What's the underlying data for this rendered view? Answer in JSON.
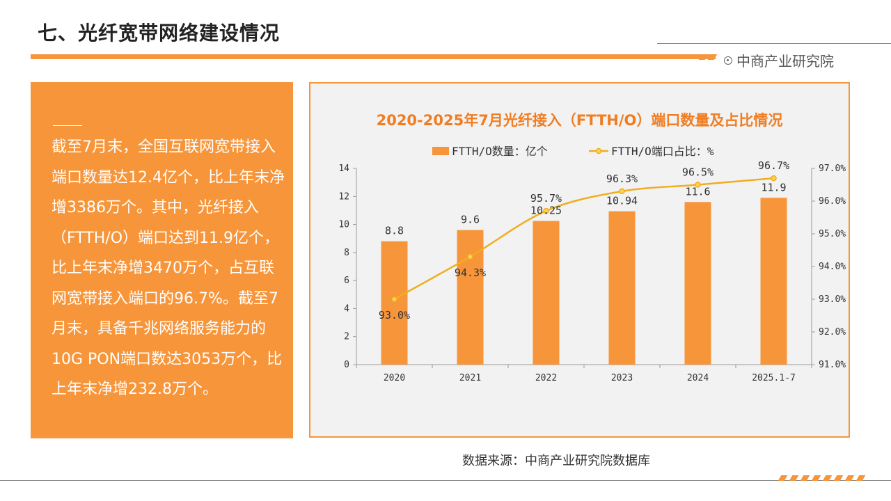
{
  "page": {
    "title": "七、光纤宽带网络建设情况",
    "brand": "中商产业研究院",
    "source": "数据来源：中商产业研究院数据库"
  },
  "summary": {
    "text": "截至7月末，全国互联网宽带接入端口数量达12.4亿个，比上年末净增3386万个。其中，光纤接入（FTTH/O）端口达到11.9亿个，比上年末净增3470万个，占互联网宽带接入端口的96.7%。截至7月末，具备千兆网络服务能力的10G PON端口数达3053万个，比上年末净增232.8万个。"
  },
  "colors": {
    "accent": "#f7953a",
    "line": "#f0ad1f"
  },
  "chart_data": {
    "type": "bar+line",
    "title": "2020-2025年7月光纤接入（FTTH/O）端口数量及占比情况",
    "categories": [
      "2020",
      "2021",
      "2022",
      "2023",
      "2024",
      "2025.1-7"
    ],
    "series": [
      {
        "name": "FTTH/O数量：亿个",
        "type": "bar",
        "axis": "left",
        "values": [
          8.8,
          9.6,
          10.25,
          10.94,
          11.6,
          11.9
        ],
        "labels": [
          "8.8",
          "9.6",
          "10.25",
          "10.94",
          "11.6",
          "11.9"
        ]
      },
      {
        "name": "FTTH/O端口占比：%",
        "type": "line",
        "axis": "right",
        "values": [
          93.0,
          94.3,
          95.7,
          96.3,
          96.5,
          96.7
        ],
        "labels": [
          "93.0%",
          "94.3%",
          "95.7%",
          "96.3%",
          "96.5%",
          "96.7%"
        ]
      }
    ],
    "y_left": {
      "min": 0,
      "max": 14,
      "ticks": [
        "0",
        "2",
        "4",
        "6",
        "8",
        "10",
        "12",
        "14"
      ]
    },
    "y_right": {
      "min": 91.0,
      "max": 97.0,
      "ticks": [
        "91.0%",
        "92.0%",
        "93.0%",
        "94.0%",
        "95.0%",
        "96.0%",
        "97.0%"
      ]
    },
    "legend": "top"
  }
}
